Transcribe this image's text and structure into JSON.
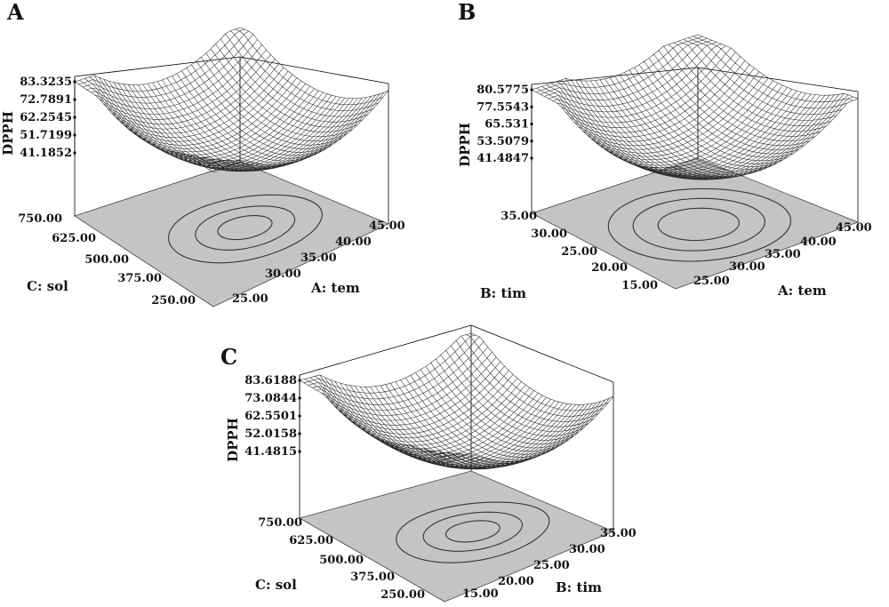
{
  "chart_data": [
    {
      "type": "surface3d",
      "panel": "A",
      "zlabel": "DPPH",
      "z_ticks": [
        "83.3235",
        "72.7891",
        "62.2545",
        "51.7199",
        "41.1852"
      ],
      "x_axis": {
        "label": "A: tem",
        "ticks": [
          "25.00",
          "30.00",
          "35.00",
          "40.00",
          "45.00"
        ],
        "range": [
          25,
          45
        ]
      },
      "y_axis": {
        "label": "C: sol",
        "ticks": [
          "250.00",
          "375.00",
          "500.00",
          "625.00",
          "750.00"
        ],
        "range": [
          250,
          750
        ]
      },
      "z_range": [
        41.1852,
        83.3235
      ]
    },
    {
      "type": "surface3d",
      "panel": "B",
      "zlabel": "DPPH",
      "z_ticks": [
        "80.5775",
        "77.5543",
        "65.531",
        "53.5079",
        "41.4847"
      ],
      "x_axis": {
        "label": "A: tem",
        "ticks": [
          "25.00",
          "30.00",
          "35.00",
          "40.00",
          "45.00"
        ],
        "range": [
          25,
          45
        ]
      },
      "y_axis": {
        "label": "B: tim",
        "ticks": [
          "15.00",
          "20.00",
          "25.00",
          "30.00",
          "35.00"
        ],
        "range": [
          15,
          35
        ]
      },
      "z_range": [
        41.4847,
        80.5775
      ]
    },
    {
      "type": "surface3d",
      "panel": "C",
      "zlabel": "DPPH",
      "z_ticks": [
        "83.6188",
        "73.0844",
        "62.5501",
        "52.0158",
        "41.4815"
      ],
      "x_axis": {
        "label": "B: tim",
        "ticks": [
          "15.00",
          "20.00",
          "25.00",
          "30.00",
          "35.00"
        ],
        "range": [
          15,
          35
        ]
      },
      "y_axis": {
        "label": "C: sol",
        "ticks": [
          "250.00",
          "375.00",
          "500.00",
          "625.00",
          "750.00"
        ],
        "range": [
          250,
          750
        ]
      },
      "z_range": [
        41.4815,
        83.6188
      ]
    }
  ]
}
